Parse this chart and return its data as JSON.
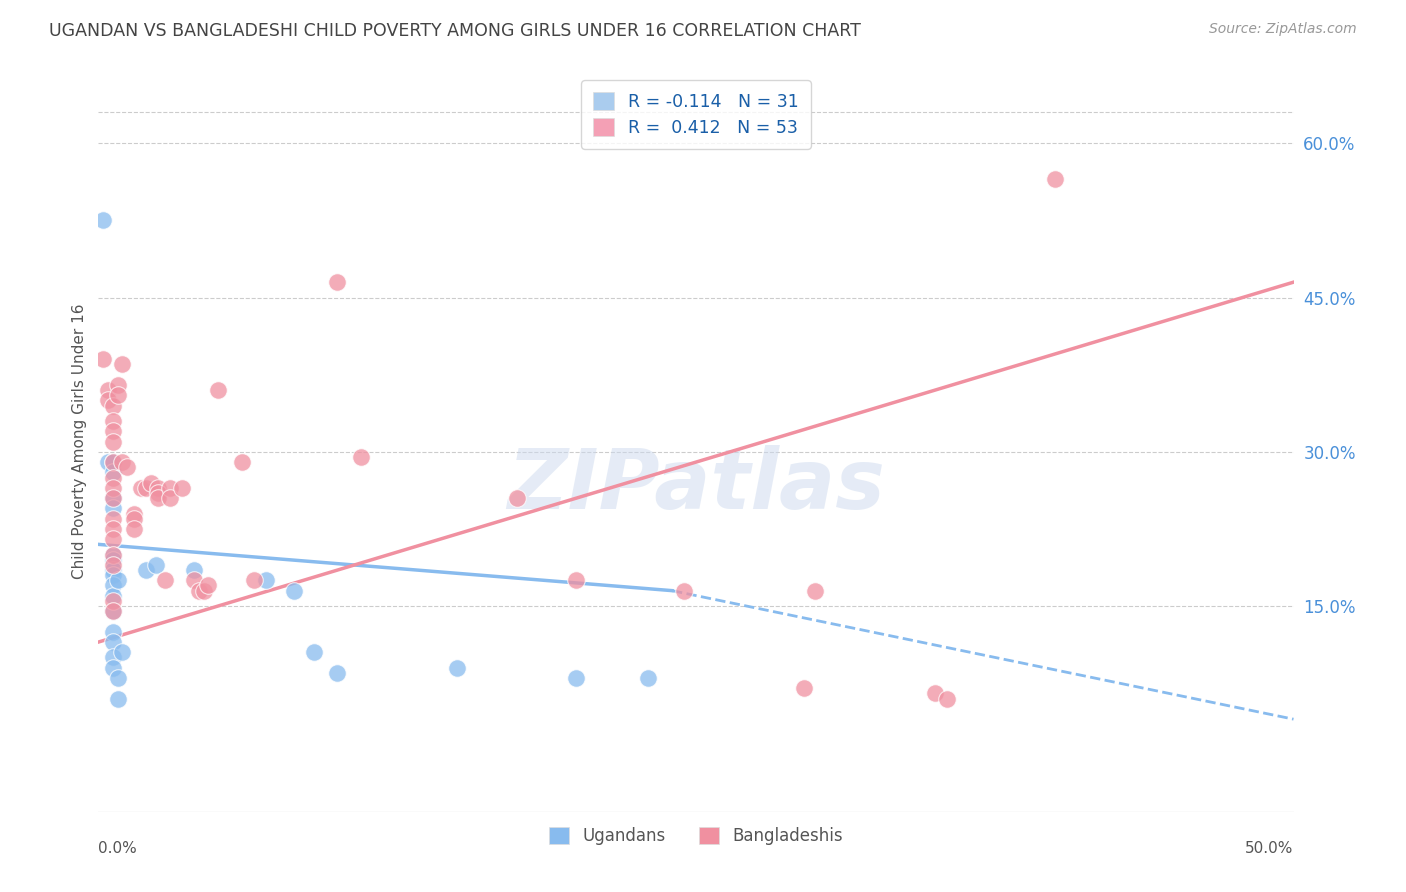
{
  "title": "UGANDAN VS BANGLADESHI CHILD POVERTY AMONG GIRLS UNDER 16 CORRELATION CHART",
  "source": "Source: ZipAtlas.com",
  "ylabel": "Child Poverty Among Girls Under 16",
  "yticks": [
    0.15,
    0.3,
    0.45,
    0.6
  ],
  "ytick_labels": [
    "15.0%",
    "30.0%",
    "45.0%",
    "60.0%"
  ],
  "xtick_left": "0.0%",
  "xtick_right": "50.0%",
  "xlim": [
    0.0,
    0.5
  ],
  "ylim": [
    -0.05,
    0.67
  ],
  "legend_entries": [
    {
      "label": "R = -0.114   N = 31",
      "color": "#aaccee"
    },
    {
      "label": "R =  0.412   N = 53",
      "color": "#f4a0b5"
    }
  ],
  "ugandan_color": "#88bbee",
  "bangladeshi_color": "#f090a0",
  "watermark_text": "ZIPatlas",
  "ugandan_points": [
    [
      0.002,
      0.525
    ],
    [
      0.004,
      0.29
    ],
    [
      0.006,
      0.29
    ],
    [
      0.006,
      0.28
    ],
    [
      0.006,
      0.255
    ],
    [
      0.006,
      0.245
    ],
    [
      0.006,
      0.2
    ],
    [
      0.006,
      0.195
    ],
    [
      0.006,
      0.185
    ],
    [
      0.006,
      0.18
    ],
    [
      0.006,
      0.17
    ],
    [
      0.006,
      0.16
    ],
    [
      0.006,
      0.145
    ],
    [
      0.006,
      0.125
    ],
    [
      0.006,
      0.115
    ],
    [
      0.006,
      0.1
    ],
    [
      0.006,
      0.09
    ],
    [
      0.008,
      0.175
    ],
    [
      0.008,
      0.08
    ],
    [
      0.008,
      0.06
    ],
    [
      0.01,
      0.105
    ],
    [
      0.02,
      0.185
    ],
    [
      0.024,
      0.19
    ],
    [
      0.04,
      0.185
    ],
    [
      0.07,
      0.175
    ],
    [
      0.082,
      0.165
    ],
    [
      0.09,
      0.105
    ],
    [
      0.1,
      0.085
    ],
    [
      0.15,
      0.09
    ],
    [
      0.2,
      0.08
    ],
    [
      0.23,
      0.08
    ]
  ],
  "bangladeshi_points": [
    [
      0.002,
      0.39
    ],
    [
      0.004,
      0.36
    ],
    [
      0.004,
      0.35
    ],
    [
      0.006,
      0.345
    ],
    [
      0.006,
      0.33
    ],
    [
      0.006,
      0.32
    ],
    [
      0.006,
      0.31
    ],
    [
      0.006,
      0.29
    ],
    [
      0.006,
      0.275
    ],
    [
      0.006,
      0.265
    ],
    [
      0.006,
      0.255
    ],
    [
      0.006,
      0.235
    ],
    [
      0.006,
      0.225
    ],
    [
      0.006,
      0.215
    ],
    [
      0.006,
      0.2
    ],
    [
      0.006,
      0.19
    ],
    [
      0.006,
      0.155
    ],
    [
      0.006,
      0.145
    ],
    [
      0.008,
      0.365
    ],
    [
      0.008,
      0.355
    ],
    [
      0.01,
      0.385
    ],
    [
      0.01,
      0.29
    ],
    [
      0.012,
      0.285
    ],
    [
      0.015,
      0.24
    ],
    [
      0.015,
      0.235
    ],
    [
      0.015,
      0.225
    ],
    [
      0.018,
      0.265
    ],
    [
      0.02,
      0.265
    ],
    [
      0.022,
      0.27
    ],
    [
      0.025,
      0.265
    ],
    [
      0.025,
      0.26
    ],
    [
      0.025,
      0.255
    ],
    [
      0.028,
      0.175
    ],
    [
      0.03,
      0.265
    ],
    [
      0.03,
      0.255
    ],
    [
      0.035,
      0.265
    ],
    [
      0.04,
      0.175
    ],
    [
      0.042,
      0.165
    ],
    [
      0.044,
      0.165
    ],
    [
      0.046,
      0.17
    ],
    [
      0.05,
      0.36
    ],
    [
      0.06,
      0.29
    ],
    [
      0.065,
      0.175
    ],
    [
      0.1,
      0.465
    ],
    [
      0.11,
      0.295
    ],
    [
      0.175,
      0.255
    ],
    [
      0.2,
      0.175
    ],
    [
      0.245,
      0.165
    ],
    [
      0.295,
      0.07
    ],
    [
      0.3,
      0.165
    ],
    [
      0.35,
      0.065
    ],
    [
      0.355,
      0.06
    ],
    [
      0.4,
      0.565
    ]
  ],
  "ugandan_line_solid": {
    "x0": 0.0,
    "x1": 0.24,
    "y0": 0.21,
    "y1": 0.165
  },
  "ugandan_line_dashed": {
    "x0": 0.24,
    "x1": 0.5,
    "y0": 0.165,
    "y1": 0.04
  },
  "bangladeshi_line": {
    "x0": 0.0,
    "x1": 0.5,
    "y0": 0.115,
    "y1": 0.465
  },
  "background_color": "#ffffff",
  "grid_color": "#cccccc",
  "title_color": "#444444",
  "axis_label_color": "#555555",
  "right_ytick_color": "#4a90d9",
  "bottom_xtick_color": "#555555"
}
